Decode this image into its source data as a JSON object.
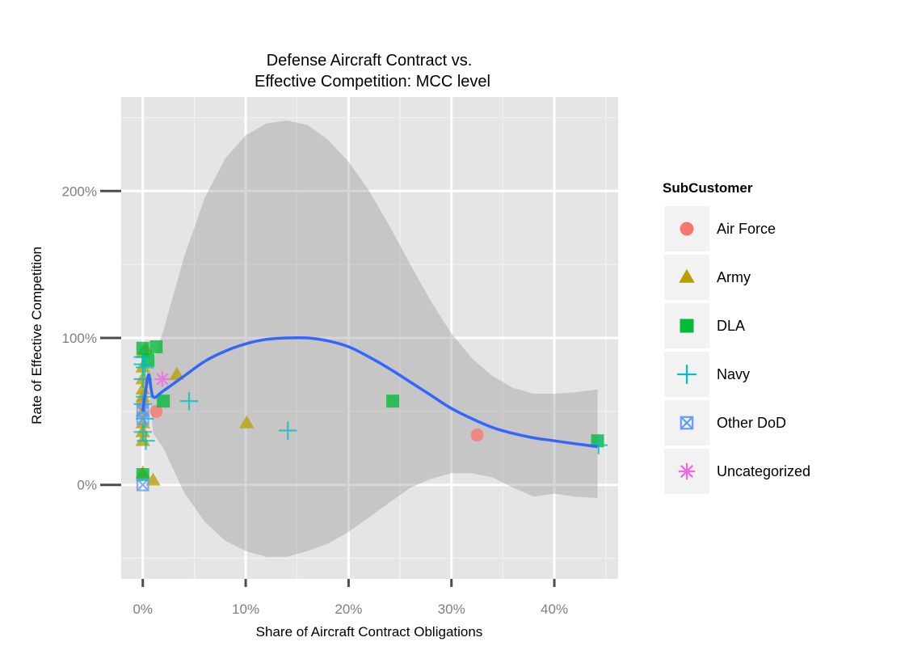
{
  "chart_data": {
    "type": "scatter",
    "title_lines": [
      "Defense Aircraft Contract vs.",
      "Effective Competition: MCC level"
    ],
    "xlabel": "Share of Aircraft Contract Obligations",
    "ylabel": "Rate of Effective Competition",
    "x_ticks": [
      {
        "value": 0.0,
        "label": "0%"
      },
      {
        "value": 0.1,
        "label": "10%"
      },
      {
        "value": 0.2,
        "label": "20%"
      },
      {
        "value": 0.3,
        "label": "30%"
      },
      {
        "value": 0.4,
        "label": "40%"
      }
    ],
    "y_ticks": [
      {
        "value": 0.0,
        "label": "0%"
      },
      {
        "value": 1.0,
        "label": "100%"
      },
      {
        "value": 2.0,
        "label": "200%"
      }
    ],
    "xlim": [
      -0.021,
      0.462
    ],
    "ylim": [
      -0.64,
      2.64
    ],
    "legend": {
      "title": "SubCustomer",
      "position": "right",
      "entries": [
        {
          "name": "Air Force",
          "color": "#F8766D",
          "shape": "circle"
        },
        {
          "name": "Army",
          "color": "#B79F00",
          "shape": "triangle"
        },
        {
          "name": "DLA",
          "color": "#00BA38",
          "shape": "square"
        },
        {
          "name": "Navy",
          "color": "#00BFC4",
          "shape": "plus"
        },
        {
          "name": "Other DoD",
          "color": "#619CFF",
          "shape": "square-x"
        },
        {
          "name": "Uncategorized",
          "color": "#F564E3",
          "shape": "asterisk"
        }
      ]
    },
    "series": [
      {
        "name": "Air Force",
        "points": [
          [
            0.013,
            0.5
          ],
          [
            0.325,
            0.34
          ],
          [
            0.0,
            0.55
          ]
        ]
      },
      {
        "name": "Army",
        "points": [
          [
            0.0,
            0.9
          ],
          [
            0.003,
            0.92
          ],
          [
            0.0,
            0.8
          ],
          [
            0.0,
            0.72
          ],
          [
            0.0,
            0.65
          ],
          [
            0.0,
            0.6
          ],
          [
            0.0,
            0.5
          ],
          [
            0.0,
            0.42
          ],
          [
            0.0,
            0.36
          ],
          [
            0.0,
            0.3
          ],
          [
            0.0,
            0.08
          ],
          [
            0.01,
            0.03
          ],
          [
            0.033,
            0.75
          ],
          [
            0.101,
            0.42
          ]
        ]
      },
      {
        "name": "DLA",
        "points": [
          [
            0.0,
            0.93
          ],
          [
            0.013,
            0.94
          ],
          [
            0.005,
            0.85
          ],
          [
            0.0,
            0.07
          ],
          [
            0.02,
            0.57
          ],
          [
            0.243,
            0.57
          ],
          [
            0.442,
            0.3
          ]
        ]
      },
      {
        "name": "Navy",
        "points": [
          [
            0.0,
            0.87
          ],
          [
            0.0,
            0.82
          ],
          [
            0.002,
            0.8
          ],
          [
            0.0,
            0.72
          ],
          [
            0.002,
            0.6
          ],
          [
            0.0,
            0.55
          ],
          [
            0.002,
            0.45
          ],
          [
            0.0,
            0.36
          ],
          [
            0.003,
            0.3
          ],
          [
            0.045,
            0.57
          ],
          [
            0.141,
            0.37
          ],
          [
            0.443,
            0.27
          ]
        ]
      },
      {
        "name": "Other DoD",
        "points": [
          [
            0.0,
            0.5
          ],
          [
            0.0,
            0.45
          ],
          [
            0.0,
            0.0
          ]
        ]
      },
      {
        "name": "Uncategorized",
        "points": [
          [
            0.019,
            0.72
          ]
        ]
      }
    ],
    "smooth": {
      "color": "#3366FF",
      "fit": [
        [
          0.0,
          0.5
        ],
        [
          0.003,
          0.65
        ],
        [
          0.006,
          0.75
        ],
        [
          0.01,
          0.6
        ],
        [
          0.02,
          0.64
        ],
        [
          0.04,
          0.74
        ],
        [
          0.06,
          0.84
        ],
        [
          0.08,
          0.91
        ],
        [
          0.1,
          0.96
        ],
        [
          0.12,
          0.99
        ],
        [
          0.14,
          1.0
        ],
        [
          0.16,
          1.0
        ],
        [
          0.18,
          0.98
        ],
        [
          0.2,
          0.94
        ],
        [
          0.22,
          0.87
        ],
        [
          0.24,
          0.79
        ],
        [
          0.26,
          0.7
        ],
        [
          0.28,
          0.61
        ],
        [
          0.3,
          0.52
        ],
        [
          0.32,
          0.45
        ],
        [
          0.34,
          0.39
        ],
        [
          0.36,
          0.35
        ],
        [
          0.38,
          0.32
        ],
        [
          0.4,
          0.3
        ],
        [
          0.42,
          0.28
        ],
        [
          0.442,
          0.26
        ]
      ],
      "upper": [
        [
          0.0,
          0.6
        ],
        [
          0.006,
          0.84
        ],
        [
          0.01,
          0.85
        ],
        [
          0.02,
          1.05
        ],
        [
          0.04,
          1.55
        ],
        [
          0.06,
          1.95
        ],
        [
          0.08,
          2.22
        ],
        [
          0.1,
          2.38
        ],
        [
          0.12,
          2.46
        ],
        [
          0.14,
          2.48
        ],
        [
          0.16,
          2.45
        ],
        [
          0.18,
          2.35
        ],
        [
          0.2,
          2.2
        ],
        [
          0.22,
          2.0
        ],
        [
          0.24,
          1.76
        ],
        [
          0.26,
          1.5
        ],
        [
          0.28,
          1.25
        ],
        [
          0.3,
          1.03
        ],
        [
          0.32,
          0.86
        ],
        [
          0.34,
          0.74
        ],
        [
          0.36,
          0.66
        ],
        [
          0.38,
          0.62
        ],
        [
          0.4,
          0.62
        ],
        [
          0.42,
          0.63
        ],
        [
          0.442,
          0.65
        ]
      ],
      "lower": [
        [
          0.0,
          0.4
        ],
        [
          0.006,
          0.66
        ],
        [
          0.01,
          0.35
        ],
        [
          0.02,
          0.25
        ],
        [
          0.04,
          -0.05
        ],
        [
          0.06,
          -0.25
        ],
        [
          0.08,
          -0.38
        ],
        [
          0.1,
          -0.45
        ],
        [
          0.12,
          -0.49
        ],
        [
          0.14,
          -0.49
        ],
        [
          0.16,
          -0.45
        ],
        [
          0.18,
          -0.4
        ],
        [
          0.2,
          -0.32
        ],
        [
          0.22,
          -0.22
        ],
        [
          0.24,
          -0.12
        ],
        [
          0.26,
          -0.02
        ],
        [
          0.28,
          0.04
        ],
        [
          0.3,
          0.08
        ],
        [
          0.32,
          0.08
        ],
        [
          0.34,
          0.05
        ],
        [
          0.36,
          -0.02
        ],
        [
          0.38,
          -0.08
        ],
        [
          0.4,
          -0.06
        ],
        [
          0.42,
          -0.08
        ],
        [
          0.442,
          -0.09
        ]
      ]
    }
  }
}
